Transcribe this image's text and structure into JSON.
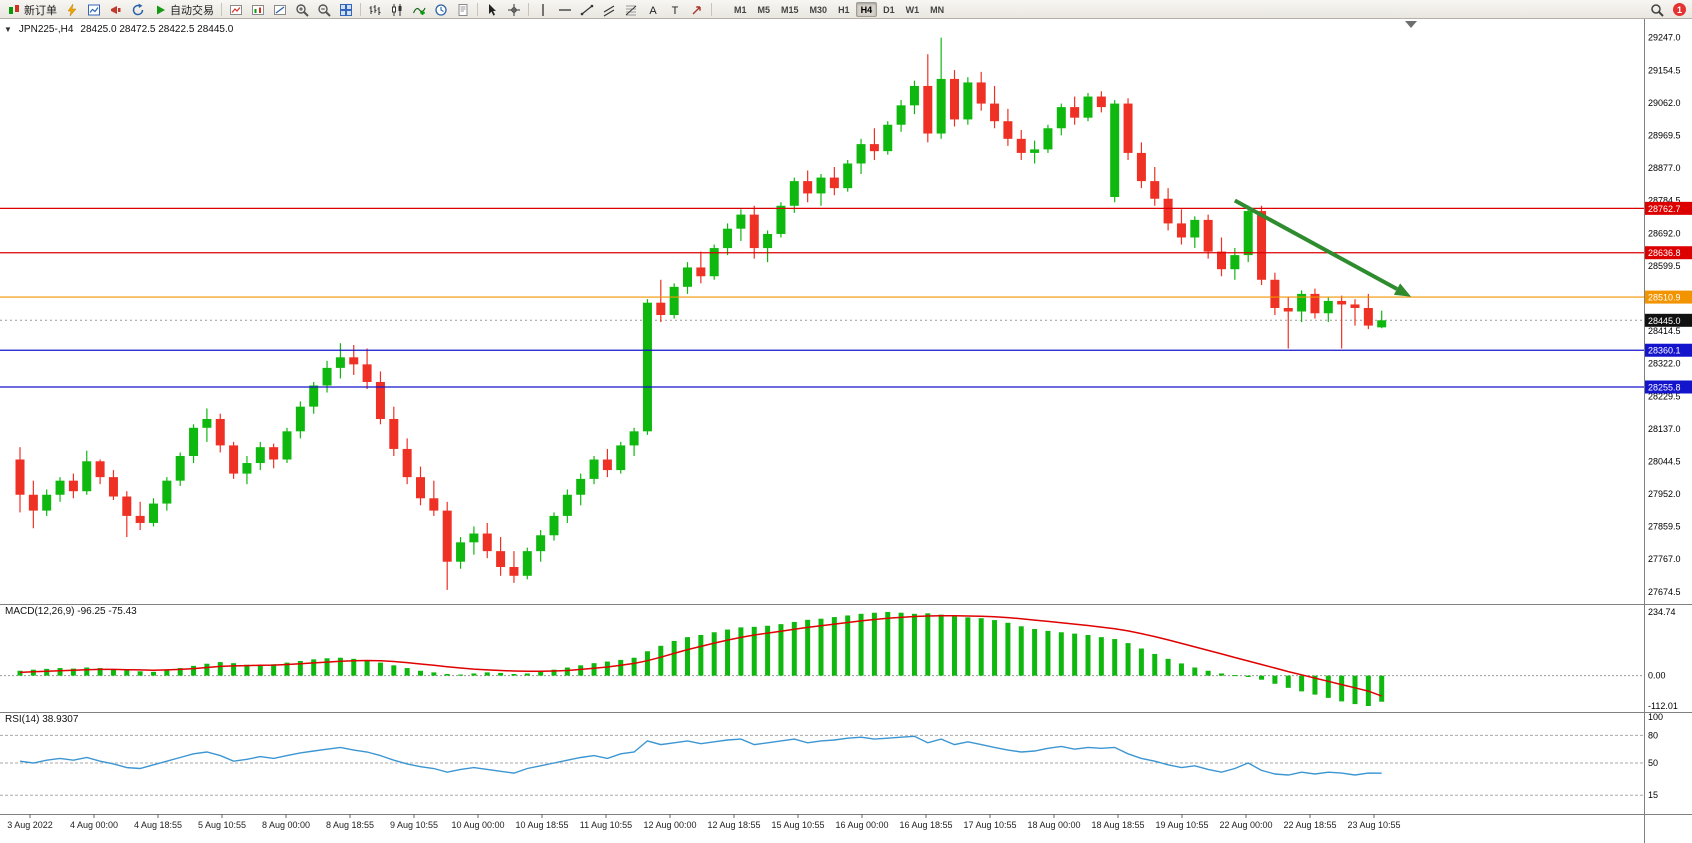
{
  "app": {
    "notifications_badge": "1"
  },
  "toolbar": {
    "items": [
      {
        "name": "new-order-button",
        "icon": "new-order-icon",
        "label": "新订单"
      },
      {
        "name": "quick-trade-button",
        "icon": "lightning-icon"
      },
      {
        "name": "market-watch-button",
        "icon": "market-watch-icon"
      },
      {
        "name": "alerts-button",
        "icon": "megaphone-icon"
      },
      {
        "name": "refresh-button",
        "icon": "refresh-icon"
      },
      {
        "name": "autotrading-button",
        "icon": "play-icon",
        "label": "自动交易"
      },
      {
        "sep": true
      },
      {
        "name": "new-chart-button",
        "icon": "new-chart-icon"
      },
      {
        "name": "chart-window-button",
        "icon": "chart-window-icon"
      },
      {
        "name": "chart-template-button",
        "icon": "chart-template-icon"
      },
      {
        "name": "zoom-in-button",
        "icon": "zoom-in-icon"
      },
      {
        "name": "zoom-out-button",
        "icon": "zoom-out-icon"
      },
      {
        "name": "tile-windows-button",
        "icon": "tile-windows-icon"
      },
      {
        "sep": true
      },
      {
        "name": "bars-chart-button",
        "icon": "bars-chart-icon"
      },
      {
        "name": "candles-chart-button",
        "icon": "candles-chart-icon"
      },
      {
        "name": "indicators-button",
        "icon": "indicators-icon"
      },
      {
        "name": "periods-button",
        "icon": "clock-icon"
      },
      {
        "name": "templates-button",
        "icon": "template-icon"
      },
      {
        "sep": true
      },
      {
        "name": "cursor-button",
        "icon": "cursor-icon"
      },
      {
        "name": "crosshair-button",
        "icon": "crosshair-icon"
      },
      {
        "sep": true
      },
      {
        "name": "vertical-line-button",
        "icon": "vertical-line-icon"
      },
      {
        "name": "horizontal-line-button",
        "icon": "horizontal-line-icon"
      },
      {
        "name": "trendline-button",
        "icon": "trendline-icon"
      },
      {
        "name": "channel-button",
        "icon": "channel-icon"
      },
      {
        "name": "fibonacci-button",
        "icon": "fibonacci-icon"
      },
      {
        "name": "text-button",
        "icon": "text-icon"
      },
      {
        "name": "text-label-button",
        "icon": "text-label-icon"
      },
      {
        "name": "arrow-tool-button",
        "icon": "arrow-tool-icon"
      },
      {
        "sep": true
      }
    ],
    "timeframes": {
      "buttons": [
        "M1",
        "M5",
        "M15",
        "M30",
        "H1",
        "H4",
        "D1",
        "W1",
        "MN"
      ],
      "active": "H4"
    }
  },
  "chart": {
    "symbol_label": "JPN225-,H4",
    "ohlc_label": "28425.0 28472.5 28422.5 28445.0",
    "one_click_glyph": "▼",
    "y_max": 29300,
    "y_min": 27640,
    "price_ticks": [
      29247.0,
      29154.5,
      29062.0,
      28969.5,
      28877.0,
      28784.5,
      28692.0,
      28599.5,
      28414.5,
      28322.0,
      28229.5,
      28137.0,
      28044.5,
      27952.0,
      27859.5,
      27767.0,
      27674.5
    ],
    "hlines": [
      {
        "price": 28762.7,
        "label": "28762.7",
        "color": "#dd0000"
      },
      {
        "price": 28636.8,
        "label": "28636.8",
        "color": "#dd0000"
      },
      {
        "price": 28510.9,
        "label": "28510.9",
        "color": "#f29400"
      },
      {
        "price": 28360.1,
        "label": "28360.1",
        "color": "#1414cc"
      },
      {
        "price": 28255.8,
        "label": "28255.8",
        "color": "#1414cc"
      }
    ],
    "bid": {
      "price": 28445.0,
      "label": "28445.0",
      "color": "#111111"
    },
    "arrow": {
      "from_idx": 91,
      "from_price": 28785,
      "to_idx": 104.2,
      "to_price": 28512,
      "color": "#2e8b2e"
    },
    "colors": {
      "bull": "#0fb80f",
      "bear": "#ee3124",
      "background": "#ffffff"
    },
    "candles": [
      [
        28050,
        28085,
        27900,
        27950
      ],
      [
        27950,
        27990,
        27855,
        27905
      ],
      [
        27905,
        27965,
        27890,
        27950
      ],
      [
        27950,
        28000,
        27930,
        27990
      ],
      [
        27990,
        28010,
        27940,
        27960
      ],
      [
        27960,
        28075,
        27950,
        28045
      ],
      [
        28045,
        28050,
        27980,
        28000
      ],
      [
        28000,
        28020,
        27935,
        27945
      ],
      [
        27945,
        27960,
        27830,
        27890
      ],
      [
        27890,
        27930,
        27850,
        27870
      ],
      [
        27870,
        27940,
        27860,
        27925
      ],
      [
        27925,
        28000,
        27905,
        27990
      ],
      [
        27990,
        28070,
        27975,
        28060
      ],
      [
        28060,
        28150,
        28040,
        28140
      ],
      [
        28140,
        28195,
        28100,
        28165
      ],
      [
        28165,
        28180,
        28070,
        28090
      ],
      [
        28090,
        28100,
        27995,
        28010
      ],
      [
        28010,
        28060,
        27980,
        28040
      ],
      [
        28040,
        28100,
        28020,
        28085
      ],
      [
        28085,
        28095,
        28025,
        28050
      ],
      [
        28050,
        28140,
        28040,
        28130
      ],
      [
        28130,
        28215,
        28110,
        28200
      ],
      [
        28200,
        28270,
        28180,
        28260
      ],
      [
        28260,
        28330,
        28240,
        28310
      ],
      [
        28310,
        28380,
        28280,
        28340
      ],
      [
        28340,
        28375,
        28290,
        28320
      ],
      [
        28320,
        28365,
        28250,
        28270
      ],
      [
        28270,
        28300,
        28150,
        28165
      ],
      [
        28165,
        28200,
        28060,
        28080
      ],
      [
        28080,
        28110,
        27980,
        28000
      ],
      [
        28000,
        28030,
        27920,
        27940
      ],
      [
        27940,
        27990,
        27890,
        27905
      ],
      [
        27905,
        27930,
        27680,
        27760
      ],
      [
        27760,
        27830,
        27740,
        27815
      ],
      [
        27815,
        27860,
        27780,
        27840
      ],
      [
        27840,
        27870,
        27770,
        27790
      ],
      [
        27790,
        27830,
        27720,
        27745
      ],
      [
        27745,
        27790,
        27700,
        27720
      ],
      [
        27720,
        27800,
        27710,
        27790
      ],
      [
        27790,
        27850,
        27760,
        27835
      ],
      [
        27835,
        27900,
        27820,
        27890
      ],
      [
        27890,
        27965,
        27870,
        27950
      ],
      [
        27950,
        28010,
        27920,
        27995
      ],
      [
        27995,
        28060,
        27980,
        28050
      ],
      [
        28050,
        28080,
        28000,
        28020
      ],
      [
        28020,
        28100,
        28010,
        28090
      ],
      [
        28090,
        28140,
        28060,
        28130
      ],
      [
        28130,
        28505,
        28120,
        28495
      ],
      [
        28495,
        28560,
        28440,
        28460
      ],
      [
        28460,
        28550,
        28450,
        28540
      ],
      [
        28540,
        28610,
        28520,
        28595
      ],
      [
        28595,
        28640,
        28550,
        28570
      ],
      [
        28570,
        28660,
        28560,
        28650
      ],
      [
        28650,
        28720,
        28630,
        28705
      ],
      [
        28705,
        28760,
        28670,
        28745
      ],
      [
        28745,
        28770,
        28620,
        28650
      ],
      [
        28650,
        28700,
        28610,
        28690
      ],
      [
        28690,
        28780,
        28680,
        28770
      ],
      [
        28770,
        28850,
        28750,
        28840
      ],
      [
        28840,
        28870,
        28780,
        28805
      ],
      [
        28805,
        28860,
        28770,
        28850
      ],
      [
        28850,
        28880,
        28800,
        28820
      ],
      [
        28820,
        28900,
        28810,
        28890
      ],
      [
        28890,
        28960,
        28860,
        28945
      ],
      [
        28945,
        28990,
        28900,
        28925
      ],
      [
        28925,
        29010,
        28915,
        29000
      ],
      [
        29000,
        29070,
        28980,
        29055
      ],
      [
        29055,
        29125,
        29030,
        29110
      ],
      [
        29110,
        29200,
        28950,
        28975
      ],
      [
        28975,
        29247,
        28960,
        29130
      ],
      [
        29130,
        29155,
        28995,
        29015
      ],
      [
        29015,
        29135,
        29000,
        29120
      ],
      [
        29120,
        29150,
        29040,
        29060
      ],
      [
        29060,
        29110,
        28990,
        29010
      ],
      [
        29010,
        29045,
        28940,
        28960
      ],
      [
        28960,
        28985,
        28900,
        28920
      ],
      [
        28920,
        28955,
        28890,
        28930
      ],
      [
        28930,
        29000,
        28920,
        28990
      ],
      [
        28990,
        29060,
        28970,
        29050
      ],
      [
        29050,
        29080,
        29000,
        29020
      ],
      [
        29020,
        29090,
        29010,
        29080
      ],
      [
        29080,
        29095,
        29035,
        29050
      ],
      [
        28795,
        29070,
        28780,
        29060
      ],
      [
        29060,
        29075,
        28900,
        28920
      ],
      [
        28920,
        28950,
        28820,
        28840
      ],
      [
        28840,
        28880,
        28770,
        28790
      ],
      [
        28790,
        28820,
        28700,
        28720
      ],
      [
        28720,
        28760,
        28660,
        28680
      ],
      [
        28680,
        28740,
        28650,
        28730
      ],
      [
        28730,
        28745,
        28620,
        28640
      ],
      [
        28640,
        28680,
        28570,
        28590
      ],
      [
        28590,
        28650,
        28560,
        28630
      ],
      [
        28630,
        28770,
        28610,
        28755
      ],
      [
        28755,
        28770,
        28545,
        28560
      ],
      [
        28560,
        28580,
        28460,
        28480
      ],
      [
        28480,
        28510,
        28365,
        28470
      ],
      [
        28470,
        28530,
        28440,
        28520
      ],
      [
        28520,
        28535,
        28450,
        28465
      ],
      [
        28465,
        28510,
        28440,
        28500
      ],
      [
        28500,
        28515,
        28365,
        28490
      ],
      [
        28490,
        28505,
        28430,
        28480
      ],
      [
        28480,
        28520,
        28420,
        28430
      ],
      [
        28425,
        28472.5,
        28422.5,
        28445
      ]
    ]
  },
  "macd": {
    "label": "MACD(12,26,9) -96.25 -75.43",
    "max": 234.74,
    "min": -112.01,
    "scale": [
      {
        "v": 234.74,
        "label": "234.74"
      },
      {
        "v": 0,
        "label": "0.00"
      },
      {
        "v": -112.01,
        "label": "-112.01"
      }
    ],
    "colors": {
      "histogram": "#0fb80f",
      "signal": "#e00000"
    },
    "histogram": [
      18,
      22,
      25,
      28,
      26,
      30,
      28,
      24,
      20,
      16,
      14,
      20,
      28,
      36,
      44,
      50,
      46,
      40,
      38,
      42,
      48,
      54,
      60,
      64,
      66,
      62,
      56,
      48,
      38,
      28,
      18,
      12,
      6,
      4,
      8,
      12,
      10,
      6,
      8,
      14,
      22,
      30,
      38,
      46,
      52,
      58,
      66,
      90,
      110,
      128,
      142,
      150,
      160,
      170,
      178,
      180,
      184,
      190,
      198,
      206,
      210,
      216,
      222,
      228,
      232,
      235,
      232,
      228,
      230,
      225,
      218,
      215,
      212,
      205,
      195,
      182,
      172,
      165,
      160,
      155,
      150,
      142,
      135,
      120,
      100,
      80,
      62,
      45,
      30,
      18,
      8,
      2,
      -5,
      -15,
      -30,
      -45,
      -58,
      -70,
      -82,
      -95,
      -105,
      -112,
      -96.25
    ],
    "signal": [
      12,
      14,
      16,
      18,
      20,
      22,
      23,
      23,
      22,
      21,
      20,
      21,
      23,
      26,
      30,
      34,
      36,
      37,
      38,
      39,
      41,
      44,
      47,
      50,
      53,
      55,
      56,
      55,
      52,
      48,
      43,
      38,
      33,
      28,
      24,
      21,
      19,
      17,
      16,
      16,
      17,
      19,
      23,
      27,
      32,
      38,
      45,
      55,
      68,
      82,
      96,
      108,
      120,
      131,
      141,
      150,
      157,
      164,
      171,
      178,
      184,
      190,
      196,
      202,
      207,
      212,
      215,
      218,
      220,
      221,
      221,
      220,
      219,
      217,
      214,
      210,
      205,
      200,
      195,
      190,
      185,
      179,
      173,
      165,
      155,
      144,
      132,
      119,
      106,
      93,
      80,
      67,
      54,
      41,
      28,
      15,
      3,
      -9,
      -21,
      -33,
      -45,
      -57,
      -75.43
    ]
  },
  "rsi": {
    "label": "RSI(14) 38.9307",
    "color": "#3c96d2",
    "scale": [
      {
        "v": 100,
        "label": "100",
        "line": false
      },
      {
        "v": 80,
        "label": "80",
        "line": true
      },
      {
        "v": 50,
        "label": "50",
        "line": true
      },
      {
        "v": 15,
        "label": "15",
        "line": true
      }
    ],
    "values": [
      52,
      50,
      53,
      55,
      53,
      56,
      52,
      49,
      45,
      44,
      48,
      52,
      56,
      60,
      62,
      58,
      52,
      54,
      57,
      55,
      58,
      61,
      63,
      65,
      67,
      64,
      62,
      58,
      53,
      49,
      46,
      44,
      40,
      43,
      45,
      43,
      41,
      39,
      44,
      47,
      50,
      53,
      56,
      58,
      55,
      60,
      62,
      74,
      70,
      72,
      74,
      71,
      73,
      75,
      76,
      70,
      72,
      74,
      76,
      72,
      74,
      75,
      77,
      78,
      76,
      77,
      78,
      79,
      72,
      76,
      70,
      73,
      70,
      67,
      64,
      62,
      63,
      66,
      68,
      65,
      67,
      66,
      67,
      60,
      55,
      52,
      48,
      45,
      47,
      43,
      40,
      44,
      50,
      42,
      38,
      37,
      40,
      38,
      40,
      39,
      37,
      39,
      38.93
    ]
  },
  "time_axis": {
    "labels": [
      "3 Aug 2022",
      "4 Aug 00:00",
      "4 Aug 18:55",
      "5 Aug 10:55",
      "8 Aug 00:00",
      "8 Aug 18:55",
      "9 Aug 10:55",
      "10 Aug 00:00",
      "10 Aug 18:55",
      "11 Aug 10:55",
      "12 Aug 00:00",
      "12 Aug 18:55",
      "15 Aug 10:55",
      "16 Aug 00:00",
      "16 Aug 18:55",
      "17 Aug 10:55",
      "18 Aug 00:00",
      "18 Aug 18:55",
      "19 Aug 10:55",
      "22 Aug 00:00",
      "22 Aug 18:55",
      "23 Aug 10:55"
    ]
  }
}
